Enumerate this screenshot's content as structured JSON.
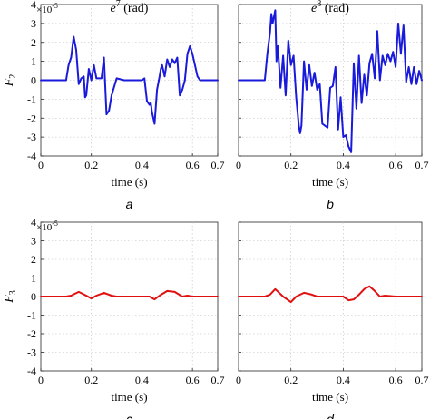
{
  "figure": {
    "row_ylabels": [
      "F2",
      "F3"
    ],
    "y_exponent_label": "×10",
    "y_exponent_power": "-5"
  },
  "chart_data": [
    {
      "type": "line",
      "panel": "a",
      "title": "e7 (rad)",
      "title_base": "e",
      "title_sup": "7",
      "title_rest": " (rad)",
      "xlabel": "time (s)",
      "ylabel": "F2",
      "caption": "a",
      "xlim": [
        0,
        0.7
      ],
      "ylim": [
        -4,
        4
      ],
      "xticks": [
        "0",
        "0.2",
        "0.4",
        "0.6",
        "0.7"
      ],
      "xtick_values": [
        0,
        0.2,
        0.4,
        0.6,
        0.7
      ],
      "yticks": [
        -4,
        -3,
        -2,
        -1,
        0,
        1,
        2,
        3,
        4
      ],
      "grid": true,
      "y_multiplier": "1e-5",
      "series": [
        {
          "color": "#1a1adb",
          "x": [
            0,
            0.1,
            0.11,
            0.115,
            0.12,
            0.13,
            0.14,
            0.15,
            0.16,
            0.17,
            0.175,
            0.18,
            0.19,
            0.2,
            0.21,
            0.22,
            0.23,
            0.24,
            0.25,
            0.26,
            0.27,
            0.28,
            0.3,
            0.33,
            0.38,
            0.4,
            0.41,
            0.42,
            0.43,
            0.435,
            0.44,
            0.45,
            0.46,
            0.47,
            0.475,
            0.48,
            0.49,
            0.5,
            0.51,
            0.52,
            0.53,
            0.54,
            0.55,
            0.56,
            0.57,
            0.58,
            0.59,
            0.6,
            0.61,
            0.62,
            0.63,
            0.65,
            0.7
          ],
          "values": [
            0,
            0,
            0.8,
            1.0,
            1.2,
            2.3,
            1.6,
            -0.2,
            0.1,
            0.2,
            -0.9,
            -0.8,
            0.6,
            0.0,
            0.8,
            0.1,
            0.1,
            0.1,
            1.2,
            -1.8,
            -1.6,
            -0.8,
            0.1,
            0.0,
            0.0,
            0.0,
            0.1,
            -1.1,
            -1.3,
            -1.2,
            -1.7,
            -2.3,
            -0.5,
            0.2,
            0.6,
            0.8,
            0.2,
            1.1,
            0.7,
            1.1,
            0.9,
            1.2,
            -0.8,
            -0.5,
            0.0,
            1.4,
            1.8,
            1.4,
            0.8,
            0.2,
            0.0,
            0.0,
            0.0
          ]
        }
      ]
    },
    {
      "type": "line",
      "panel": "b",
      "title": "e8 (rad)",
      "title_base": "e",
      "title_sup": "8",
      "title_rest": " (rad)",
      "xlabel": "time (s)",
      "ylabel": "",
      "caption": "b",
      "xlim": [
        0,
        0.7
      ],
      "ylim": [
        -4,
        4
      ],
      "xticks": [
        "0",
        "0.2",
        "0.4",
        "0.6",
        "0.7"
      ],
      "xtick_values": [
        0,
        0.2,
        0.4,
        0.6,
        0.7
      ],
      "yticks": [
        -4,
        -3,
        -2,
        -1,
        0,
        1,
        2,
        3,
        4
      ],
      "grid": true,
      "y_multiplier": "1e-5",
      "series": [
        {
          "color": "#1a1adb",
          "x": [
            0,
            0.1,
            0.11,
            0.12,
            0.125,
            0.13,
            0.14,
            0.145,
            0.15,
            0.16,
            0.17,
            0.18,
            0.19,
            0.2,
            0.21,
            0.22,
            0.23,
            0.235,
            0.24,
            0.25,
            0.26,
            0.27,
            0.28,
            0.29,
            0.3,
            0.31,
            0.32,
            0.33,
            0.34,
            0.35,
            0.36,
            0.37,
            0.38,
            0.39,
            0.4,
            0.41,
            0.42,
            0.43,
            0.44,
            0.45,
            0.46,
            0.47,
            0.48,
            0.49,
            0.5,
            0.51,
            0.52,
            0.53,
            0.54,
            0.55,
            0.56,
            0.57,
            0.58,
            0.59,
            0.6,
            0.61,
            0.62,
            0.63,
            0.64,
            0.65,
            0.66,
            0.67,
            0.68,
            0.69,
            0.7
          ],
          "values": [
            0,
            0,
            1.4,
            2.5,
            3.5,
            3.0,
            3.7,
            1.0,
            1.8,
            -0.4,
            1.3,
            -0.8,
            2.1,
            0.8,
            1.3,
            -0.9,
            -2.4,
            -2.8,
            -2.4,
            1.0,
            -0.5,
            0.8,
            -0.3,
            0.4,
            -0.5,
            -0.2,
            -2.3,
            -2.4,
            -2.5,
            -0.4,
            -0.3,
            0.7,
            -2.6,
            -0.9,
            -3.0,
            -2.9,
            -3.5,
            -3.8,
            0.9,
            -1.5,
            1.3,
            -1.2,
            0.3,
            -0.8,
            0.9,
            1.4,
            0.1,
            2.6,
            0.0,
            1.3,
            0.8,
            1.4,
            1.0,
            1.5,
            0.7,
            3.0,
            1.4,
            2.9,
            -0.1,
            0.7,
            -0.2,
            0.7,
            -0.2,
            0.5,
            0.0
          ]
        }
      ]
    },
    {
      "type": "line",
      "panel": "c",
      "title": "",
      "xlabel": "time (s)",
      "ylabel": "F3",
      "caption": "c",
      "xlim": [
        0,
        0.7
      ],
      "ylim": [
        -4,
        4
      ],
      "xticks": [
        "0",
        "0.2",
        "0.4",
        "0.6",
        "0.7"
      ],
      "xtick_values": [
        0,
        0.2,
        0.4,
        0.6,
        0.7
      ],
      "yticks": [
        -4,
        -3,
        -2,
        -1,
        0,
        1,
        2,
        3,
        4
      ],
      "grid": true,
      "y_multiplier": "1e-5",
      "series": [
        {
          "color": "#e01010",
          "x": [
            0,
            0.1,
            0.12,
            0.15,
            0.18,
            0.2,
            0.22,
            0.25,
            0.28,
            0.3,
            0.35,
            0.4,
            0.43,
            0.45,
            0.47,
            0.5,
            0.53,
            0.56,
            0.58,
            0.6,
            0.65,
            0.7
          ],
          "values": [
            0,
            0,
            0.05,
            0.25,
            0.05,
            -0.1,
            0.05,
            0.2,
            0.05,
            0.0,
            0.0,
            0.0,
            0.0,
            -0.15,
            0.05,
            0.3,
            0.25,
            0.0,
            0.05,
            0.0,
            0.0,
            0.0
          ]
        }
      ]
    },
    {
      "type": "line",
      "panel": "d",
      "title": "",
      "xlabel": "time (s)",
      "ylabel": "",
      "caption": "d",
      "xlim": [
        0,
        0.7
      ],
      "ylim": [
        -4,
        4
      ],
      "xticks": [
        "0",
        "0.2",
        "0.4",
        "0.6",
        "0.7"
      ],
      "xtick_values": [
        0,
        0.2,
        0.4,
        0.6,
        0.7
      ],
      "yticks": [
        -4,
        -3,
        -2,
        -1,
        0,
        1,
        2,
        3,
        4
      ],
      "grid": true,
      "y_multiplier": "1e-5",
      "series": [
        {
          "color": "#e01010",
          "x": [
            0,
            0.1,
            0.12,
            0.14,
            0.17,
            0.2,
            0.22,
            0.25,
            0.28,
            0.3,
            0.35,
            0.4,
            0.42,
            0.44,
            0.46,
            0.48,
            0.5,
            0.52,
            0.54,
            0.56,
            0.6,
            0.7
          ],
          "values": [
            0,
            0,
            0.1,
            0.4,
            0.0,
            -0.3,
            0.0,
            0.2,
            0.1,
            0.0,
            0.0,
            0.0,
            -0.2,
            -0.15,
            0.1,
            0.4,
            0.55,
            0.3,
            0.0,
            0.05,
            0.0,
            0.0
          ]
        }
      ]
    }
  ]
}
